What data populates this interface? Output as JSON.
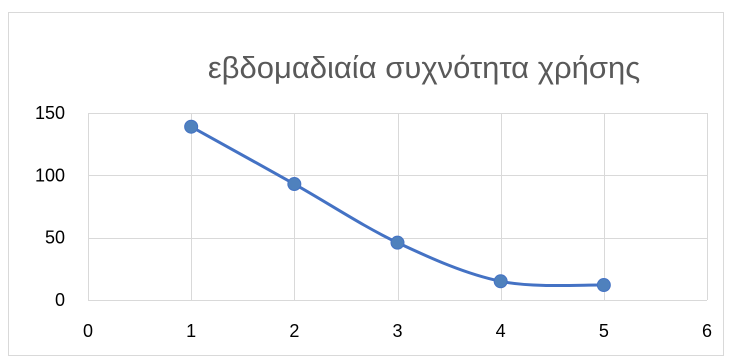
{
  "chart_data": {
    "type": "scatter",
    "title": "εβδομαδιαία συχνότητα χρήσης",
    "xlabel": "",
    "ylabel": "",
    "x": [
      1,
      2,
      3,
      4,
      5
    ],
    "series": [
      {
        "values": [
          139,
          93,
          46,
          15,
          12
        ]
      }
    ],
    "xlim": [
      0,
      6
    ],
    "ylim": [
      0,
      150
    ],
    "x_ticks": [
      "0",
      "1",
      "2",
      "3",
      "4",
      "5",
      "6"
    ],
    "y_ticks": [
      "0",
      "50",
      "100",
      "150"
    ],
    "smooth_line": true,
    "grid": true,
    "legend": "none",
    "colors": {
      "series": "#4472c4",
      "marker": "#4f81bd",
      "grid": "#d9d9d9",
      "title": "#595959",
      "border": "#d9d9d9"
    }
  }
}
